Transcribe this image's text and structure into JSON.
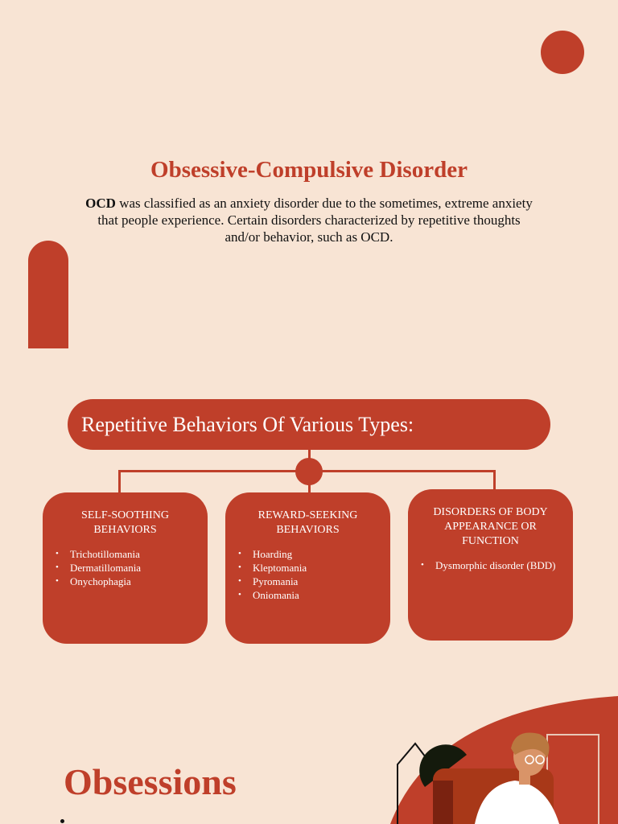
{
  "title": "Obsessive-Compulsive Disorder",
  "intro": {
    "bold": "OCD",
    "text": " was classified as an anxiety disorder due to the sometimes, extreme anxiety that people experience. Certain disorders characterized by repetitive thoughts and/or behavior, such as OCD."
  },
  "diagram": {
    "heading": "Repetitive Behaviors Of Various Types:",
    "boxes": [
      {
        "title": "SELF-SOOTHING BEHAVIORS",
        "items": [
          "Trichotillomania",
          "Dermatillomania",
          "Onychophagia"
        ]
      },
      {
        "title": "REWARD-SEEKING BEHAVIORS",
        "items": [
          "Hoarding",
          "Kleptomania",
          "Pyromania",
          "Oniomania"
        ]
      },
      {
        "title": "DISORDERS OF BODY APPEARANCE OR FUNCTION",
        "items": [
          "Dysmorphic disorder (BDD)"
        ]
      }
    ]
  },
  "section2": {
    "heading": "Obsessions"
  },
  "colors": {
    "accent": "#bf3f2a",
    "background": "#f8e4d4"
  }
}
